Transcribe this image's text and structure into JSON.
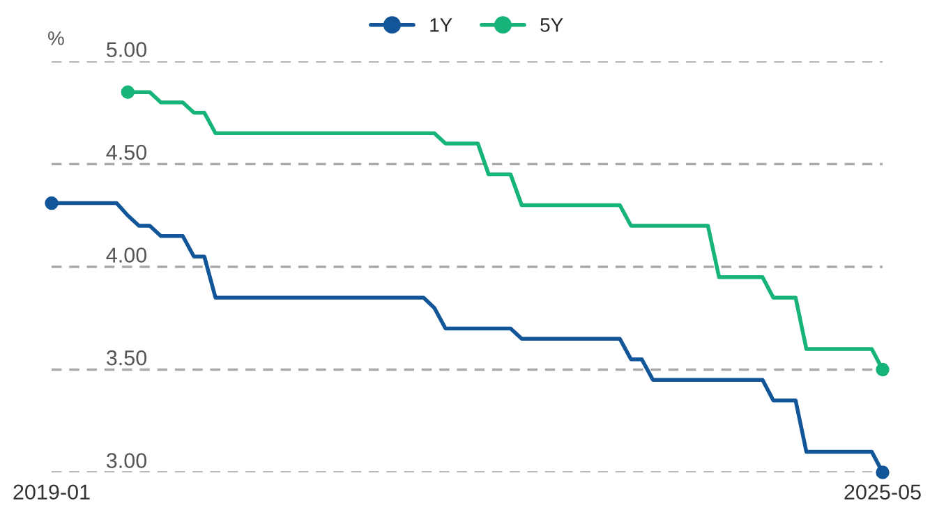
{
  "chart_data": {
    "type": "line",
    "ylabel": "%",
    "x": [
      "2019-01",
      "2019-02",
      "2019-03",
      "2019-04",
      "2019-05",
      "2019-06",
      "2019-07",
      "2019-08",
      "2019-09",
      "2019-10",
      "2019-11",
      "2019-12",
      "2020-01",
      "2020-02",
      "2020-03",
      "2020-04",
      "2020-05",
      "2020-06",
      "2020-07",
      "2020-08",
      "2020-09",
      "2020-10",
      "2020-11",
      "2020-12",
      "2021-01",
      "2021-02",
      "2021-03",
      "2021-04",
      "2021-05",
      "2021-06",
      "2021-07",
      "2021-08",
      "2021-09",
      "2021-10",
      "2021-11",
      "2021-12",
      "2022-01",
      "2022-02",
      "2022-03",
      "2022-04",
      "2022-05",
      "2022-06",
      "2022-07",
      "2022-08",
      "2022-09",
      "2022-10",
      "2022-11",
      "2022-12",
      "2023-01",
      "2023-02",
      "2023-03",
      "2023-04",
      "2023-05",
      "2023-06",
      "2023-07",
      "2023-08",
      "2023-09",
      "2023-10",
      "2023-11",
      "2023-12",
      "2024-01",
      "2024-02",
      "2024-03",
      "2024-04",
      "2024-05",
      "2024-06",
      "2024-07",
      "2024-08",
      "2024-09",
      "2024-10",
      "2024-11",
      "2024-12",
      "2025-01",
      "2025-02",
      "2025-03",
      "2025-04",
      "2025-05"
    ],
    "series": [
      {
        "name": "1Y",
        "color": "#125699",
        "values": [
          4.31,
          4.31,
          4.31,
          4.31,
          4.31,
          4.31,
          4.31,
          4.25,
          4.2,
          4.2,
          4.15,
          4.15,
          4.15,
          4.05,
          4.05,
          3.85,
          3.85,
          3.85,
          3.85,
          3.85,
          3.85,
          3.85,
          3.85,
          3.85,
          3.85,
          3.85,
          3.85,
          3.85,
          3.85,
          3.85,
          3.85,
          3.85,
          3.85,
          3.85,
          3.85,
          3.8,
          3.7,
          3.7,
          3.7,
          3.7,
          3.7,
          3.7,
          3.7,
          3.65,
          3.65,
          3.65,
          3.65,
          3.65,
          3.65,
          3.65,
          3.65,
          3.65,
          3.65,
          3.55,
          3.55,
          3.45,
          3.45,
          3.45,
          3.45,
          3.45,
          3.45,
          3.45,
          3.45,
          3.45,
          3.45,
          3.45,
          3.35,
          3.35,
          3.35,
          3.1,
          3.1,
          3.1,
          3.1,
          3.1,
          3.1,
          3.1,
          3.0
        ]
      },
      {
        "name": "5Y",
        "color": "#17b47a",
        "values": [
          null,
          null,
          null,
          null,
          null,
          null,
          null,
          4.85,
          4.85,
          4.85,
          4.8,
          4.8,
          4.8,
          4.75,
          4.75,
          4.65,
          4.65,
          4.65,
          4.65,
          4.65,
          4.65,
          4.65,
          4.65,
          4.65,
          4.65,
          4.65,
          4.65,
          4.65,
          4.65,
          4.65,
          4.65,
          4.65,
          4.65,
          4.65,
          4.65,
          4.65,
          4.6,
          4.6,
          4.6,
          4.6,
          4.45,
          4.45,
          4.45,
          4.3,
          4.3,
          4.3,
          4.3,
          4.3,
          4.3,
          4.3,
          4.3,
          4.3,
          4.3,
          4.2,
          4.2,
          4.2,
          4.2,
          4.2,
          4.2,
          4.2,
          4.2,
          3.95,
          3.95,
          3.95,
          3.95,
          3.95,
          3.85,
          3.85,
          3.85,
          3.6,
          3.6,
          3.6,
          3.6,
          3.6,
          3.6,
          3.6,
          3.5
        ]
      }
    ],
    "xlim": [
      "2019-01",
      "2025-05"
    ],
    "xticks": [
      "2019-01",
      "2025-05"
    ],
    "ylim": [
      3.0,
      5.0
    ],
    "yticks": [
      {
        "value": 3.0,
        "label": "3.00"
      },
      {
        "value": 3.5,
        "label": "3.50"
      },
      {
        "value": 4.0,
        "label": "4.00"
      },
      {
        "value": 4.5,
        "label": "4.50"
      },
      {
        "value": 5.0,
        "label": "5.00"
      }
    ],
    "grid": "y",
    "legend": "top",
    "line_style": "solid"
  }
}
